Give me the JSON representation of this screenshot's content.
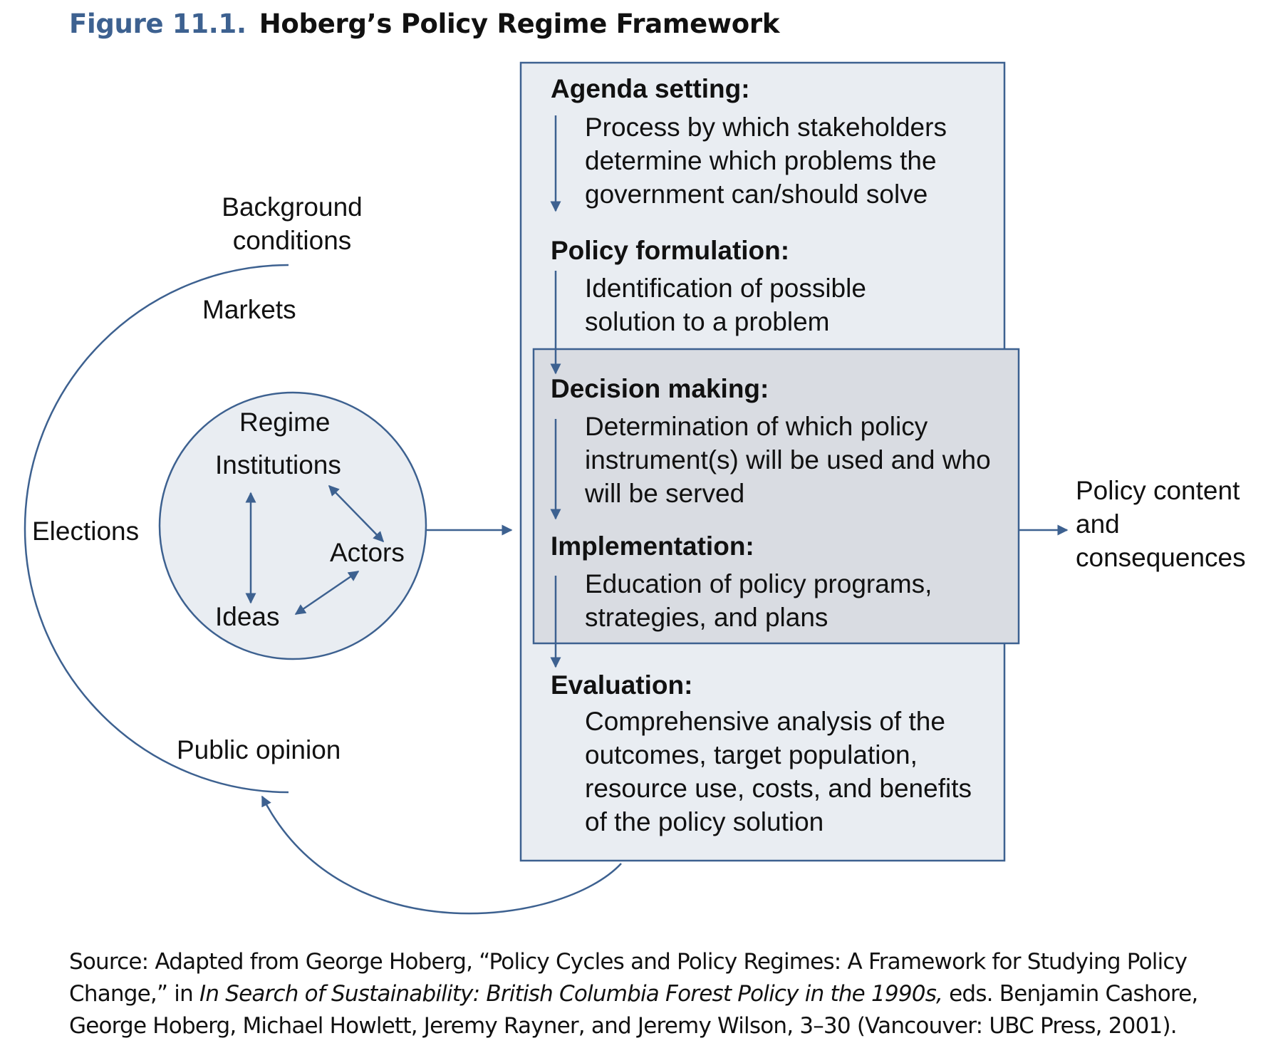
{
  "figure": {
    "number": "Figure 11.1.",
    "title": "Hoberg’s Policy Regime Framework"
  },
  "background": {
    "label": "Background conditions",
    "items": [
      "Markets",
      "Elections",
      "Public opinion"
    ]
  },
  "regime": {
    "label": "Regime",
    "nodes": [
      "Institutions",
      "Actors",
      "Ideas"
    ]
  },
  "stages": [
    {
      "heading": "Agenda setting:",
      "description": "Process by which stakeholders determine which problems the government can/should solve"
    },
    {
      "heading": "Policy formulation:",
      "description": "Identification of possible solution to a problem"
    },
    {
      "heading": "Decision making:",
      "description": "Determination of which policy instrument(s) will be used and who will be served"
    },
    {
      "heading": "Implementation:",
      "description": "Education of policy programs, strategies, and plans"
    },
    {
      "heading": "Evaluation:",
      "description": "Comprehensive analysis of the outcomes, target population, resource use, costs, and benefits of the policy solution"
    }
  ],
  "output": {
    "label": "Policy content and consequences"
  },
  "source": {
    "prefix": "Source: Adapted from George Hoberg, “Policy Cycles and Policy Regimes: A Framework for Studying Policy Change,” in ",
    "book": "In Search of Sustainability: British Columbia Forest Policy in the 1990s,",
    "suffix": " eds. Benjamin Cashore, George Hoberg, Michael Howlett, Jeremy Rayner, and Jeremy Wilson, 3–30 (Vancouver: UBC Press, 2001)."
  },
  "colors": {
    "accent": "#3d6190",
    "outer_box_fill": "#e9edf2",
    "inner_box_fill": "#d9dce2",
    "circle_fill": "#e9edf2"
  }
}
